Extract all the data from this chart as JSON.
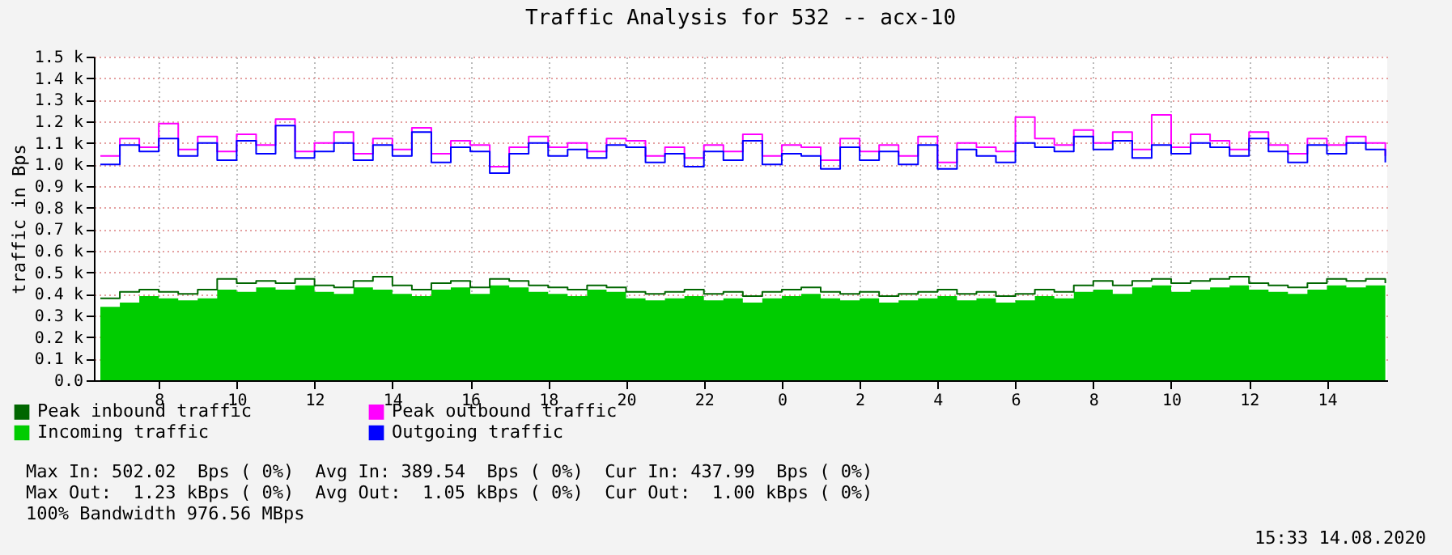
{
  "chart_data": {
    "type": "step",
    "title": "Traffic Analysis for 532 -- acx-10",
    "ylabel": "traffic in Bps",
    "x": [
      "2020-08-13T06:30",
      "2020-08-13T07:00",
      "2020-08-13T07:30",
      "2020-08-13T08:00",
      "2020-08-13T08:30",
      "2020-08-13T09:00",
      "2020-08-13T09:30",
      "2020-08-13T10:00",
      "2020-08-13T10:30",
      "2020-08-13T11:00",
      "2020-08-13T11:30",
      "2020-08-13T12:00",
      "2020-08-13T12:30",
      "2020-08-13T13:00",
      "2020-08-13T13:30",
      "2020-08-13T14:00",
      "2020-08-13T14:30",
      "2020-08-13T15:00",
      "2020-08-13T15:30",
      "2020-08-13T16:00",
      "2020-08-13T16:30",
      "2020-08-13T17:00",
      "2020-08-13T17:30",
      "2020-08-13T18:00",
      "2020-08-13T18:30",
      "2020-08-13T19:00",
      "2020-08-13T19:30",
      "2020-08-13T20:00",
      "2020-08-13T20:30",
      "2020-08-13T21:00",
      "2020-08-13T21:30",
      "2020-08-13T22:00",
      "2020-08-13T22:30",
      "2020-08-13T23:00",
      "2020-08-13T23:30",
      "2020-08-14T00:00",
      "2020-08-14T00:30",
      "2020-08-14T01:00",
      "2020-08-14T01:30",
      "2020-08-14T02:00",
      "2020-08-14T02:30",
      "2020-08-14T03:00",
      "2020-08-14T03:30",
      "2020-08-14T04:00",
      "2020-08-14T04:30",
      "2020-08-14T05:00",
      "2020-08-14T05:30",
      "2020-08-14T06:00",
      "2020-08-14T06:30",
      "2020-08-14T07:00",
      "2020-08-14T07:30",
      "2020-08-14T08:00",
      "2020-08-14T08:30",
      "2020-08-14T09:00",
      "2020-08-14T09:30",
      "2020-08-14T10:00",
      "2020-08-14T10:30",
      "2020-08-14T11:00",
      "2020-08-14T11:30",
      "2020-08-14T12:00",
      "2020-08-14T12:30",
      "2020-08-14T13:00",
      "2020-08-14T13:30",
      "2020-08-14T14:00",
      "2020-08-14T14:30",
      "2020-08-14T15:00",
      "2020-08-14T15:30"
    ],
    "series": [
      {
        "name": "Peak inbound traffic",
        "type": "step",
        "color": "#006600",
        "values": [
          380,
          410,
          420,
          410,
          400,
          420,
          470,
          450,
          460,
          450,
          470,
          440,
          430,
          460,
          480,
          440,
          420,
          450,
          460,
          430,
          470,
          460,
          440,
          430,
          420,
          440,
          430,
          410,
          400,
          410,
          420,
          400,
          410,
          390,
          410,
          420,
          430,
          410,
          400,
          410,
          390,
          400,
          410,
          420,
          400,
          410,
          390,
          400,
          420,
          410,
          440,
          460,
          440,
          460,
          470,
          450,
          460,
          470,
          480,
          450,
          440,
          430,
          450,
          470,
          460,
          470,
          450
        ]
      },
      {
        "name": "Incoming traffic",
        "type": "area",
        "color": "#00cc00",
        "values": [
          340,
          360,
          390,
          380,
          370,
          380,
          420,
          410,
          430,
          420,
          440,
          410,
          400,
          430,
          420,
          400,
          390,
          420,
          430,
          400,
          440,
          430,
          410,
          400,
          390,
          420,
          410,
          380,
          370,
          380,
          390,
          370,
          380,
          360,
          380,
          390,
          400,
          380,
          370,
          380,
          360,
          370,
          380,
          390,
          370,
          380,
          360,
          370,
          390,
          380,
          410,
          420,
          400,
          430,
          440,
          410,
          420,
          430,
          440,
          420,
          410,
          400,
          420,
          440,
          430,
          440,
          430
        ]
      },
      {
        "name": "Peak outbound traffic",
        "type": "step",
        "color": "#ff00ff",
        "values": [
          1040,
          1120,
          1080,
          1190,
          1070,
          1130,
          1060,
          1140,
          1090,
          1210,
          1060,
          1100,
          1150,
          1050,
          1120,
          1070,
          1170,
          1050,
          1110,
          1090,
          990,
          1080,
          1130,
          1080,
          1100,
          1060,
          1120,
          1110,
          1040,
          1080,
          1030,
          1090,
          1060,
          1140,
          1040,
          1090,
          1080,
          1020,
          1120,
          1060,
          1090,
          1040,
          1130,
          1010,
          1100,
          1080,
          1060,
          1220,
          1120,
          1090,
          1160,
          1100,
          1150,
          1070,
          1230,
          1080,
          1140,
          1110,
          1070,
          1150,
          1090,
          1050,
          1120,
          1090,
          1130,
          1100,
          1040
        ]
      },
      {
        "name": "Outgoing traffic",
        "type": "step",
        "color": "#0000ff",
        "values": [
          1000,
          1090,
          1060,
          1120,
          1040,
          1100,
          1020,
          1110,
          1050,
          1180,
          1030,
          1060,
          1100,
          1020,
          1090,
          1040,
          1150,
          1010,
          1080,
          1060,
          960,
          1050,
          1100,
          1040,
          1070,
          1030,
          1090,
          1080,
          1010,
          1050,
          990,
          1060,
          1020,
          1110,
          1000,
          1050,
          1040,
          980,
          1080,
          1020,
          1060,
          1000,
          1090,
          980,
          1070,
          1040,
          1010,
          1100,
          1080,
          1060,
          1130,
          1070,
          1110,
          1030,
          1090,
          1050,
          1100,
          1080,
          1040,
          1120,
          1060,
          1010,
          1090,
          1050,
          1100,
          1070,
          1010
        ]
      }
    ],
    "xlim": [
      "2020-08-13T06:20",
      "2020-08-14T15:33"
    ],
    "xticks": [
      {
        "value": "2020-08-13T08:00",
        "label": "8"
      },
      {
        "value": "2020-08-13T10:00",
        "label": "10"
      },
      {
        "value": "2020-08-13T12:00",
        "label": "12"
      },
      {
        "value": "2020-08-13T14:00",
        "label": "14"
      },
      {
        "value": "2020-08-13T16:00",
        "label": "16"
      },
      {
        "value": "2020-08-13T18:00",
        "label": "18"
      },
      {
        "value": "2020-08-13T20:00",
        "label": "20"
      },
      {
        "value": "2020-08-13T22:00",
        "label": "22"
      },
      {
        "value": "2020-08-14T00:00",
        "label": "0"
      },
      {
        "value": "2020-08-14T02:00",
        "label": "2"
      },
      {
        "value": "2020-08-14T04:00",
        "label": "4"
      },
      {
        "value": "2020-08-14T06:00",
        "label": "6"
      },
      {
        "value": "2020-08-14T08:00",
        "label": "8"
      },
      {
        "value": "2020-08-14T10:00",
        "label": "10"
      },
      {
        "value": "2020-08-14T12:00",
        "label": "12"
      },
      {
        "value": "2020-08-14T14:00",
        "label": "14"
      }
    ],
    "ylim": [
      0,
      1500
    ],
    "yticks": [
      {
        "value": 0,
        "label": "0.0"
      },
      {
        "value": 100,
        "label": "0.1 k"
      },
      {
        "value": 200,
        "label": "0.2 k"
      },
      {
        "value": 300,
        "label": "0.3 k"
      },
      {
        "value": 400,
        "label": "0.4 k"
      },
      {
        "value": 500,
        "label": "0.5 k"
      },
      {
        "value": 600,
        "label": "0.6 k"
      },
      {
        "value": 700,
        "label": "0.7 k"
      },
      {
        "value": 800,
        "label": "0.8 k"
      },
      {
        "value": 900,
        "label": "0.9 k"
      },
      {
        "value": 1000,
        "label": "1.0 k"
      },
      {
        "value": 1100,
        "label": "1.1 k"
      },
      {
        "value": 1200,
        "label": "1.2 k"
      },
      {
        "value": 1300,
        "label": "1.3 k"
      },
      {
        "value": 1400,
        "label": "1.4 k"
      },
      {
        "value": 1500,
        "label": "1.5 k"
      }
    ],
    "grid": true,
    "legend": "bottom",
    "annotations": [
      "Max In: 502.02  Bps ( 0%)  Avg In: 389.54  Bps ( 0%)  Cur In: 437.99  Bps ( 0%)",
      "Max Out:  1.23 kBps ( 0%)  Avg Out:  1.05 kBps ( 0%)  Cur Out:  1.00 kBps ( 0%)",
      "100% Bandwidth 976.56 MBps",
      "15:33 14.08.2020"
    ]
  }
}
